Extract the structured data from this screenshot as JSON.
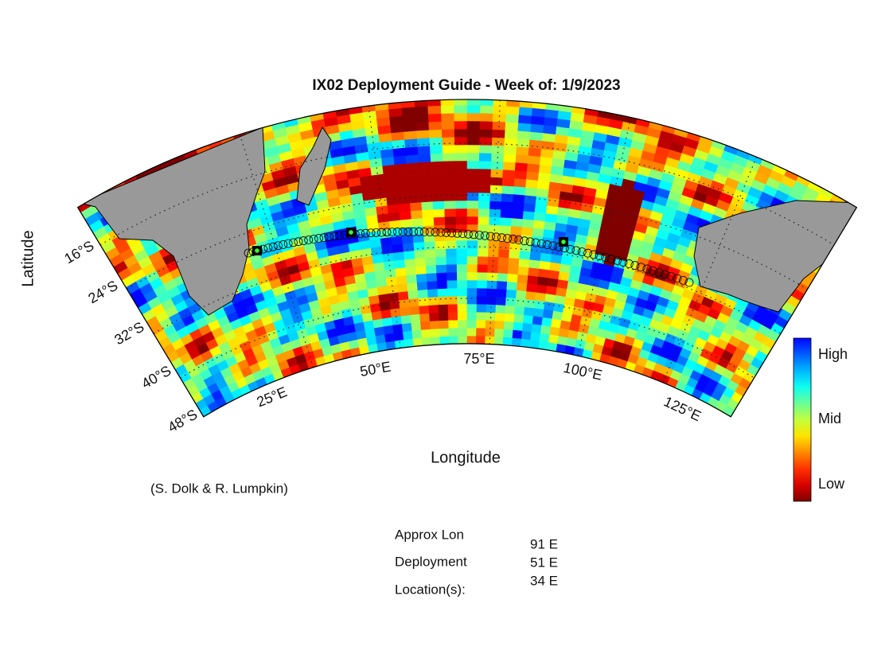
{
  "title": "IX02 Deployment Guide - Week of: 1/9/2023",
  "axes": {
    "x_label": "Longitude",
    "y_label": "Latitude",
    "lat_labels": [
      "16°S",
      "24°S",
      "32°S",
      "40°S",
      "48°S"
    ],
    "lon_labels": [
      "25°E",
      "50°E",
      "75°E",
      "100°E",
      "125°E"
    ]
  },
  "colorbar": {
    "labels": [
      "High",
      "Mid",
      "Low"
    ]
  },
  "credit": "(S. Dolk & R. Lumpkin)",
  "deployment": {
    "label_lines": [
      "Approx Lon",
      "Deployment",
      "Location(s):"
    ],
    "locations": [
      "91 E",
      "51 E",
      "34 E"
    ]
  }
}
